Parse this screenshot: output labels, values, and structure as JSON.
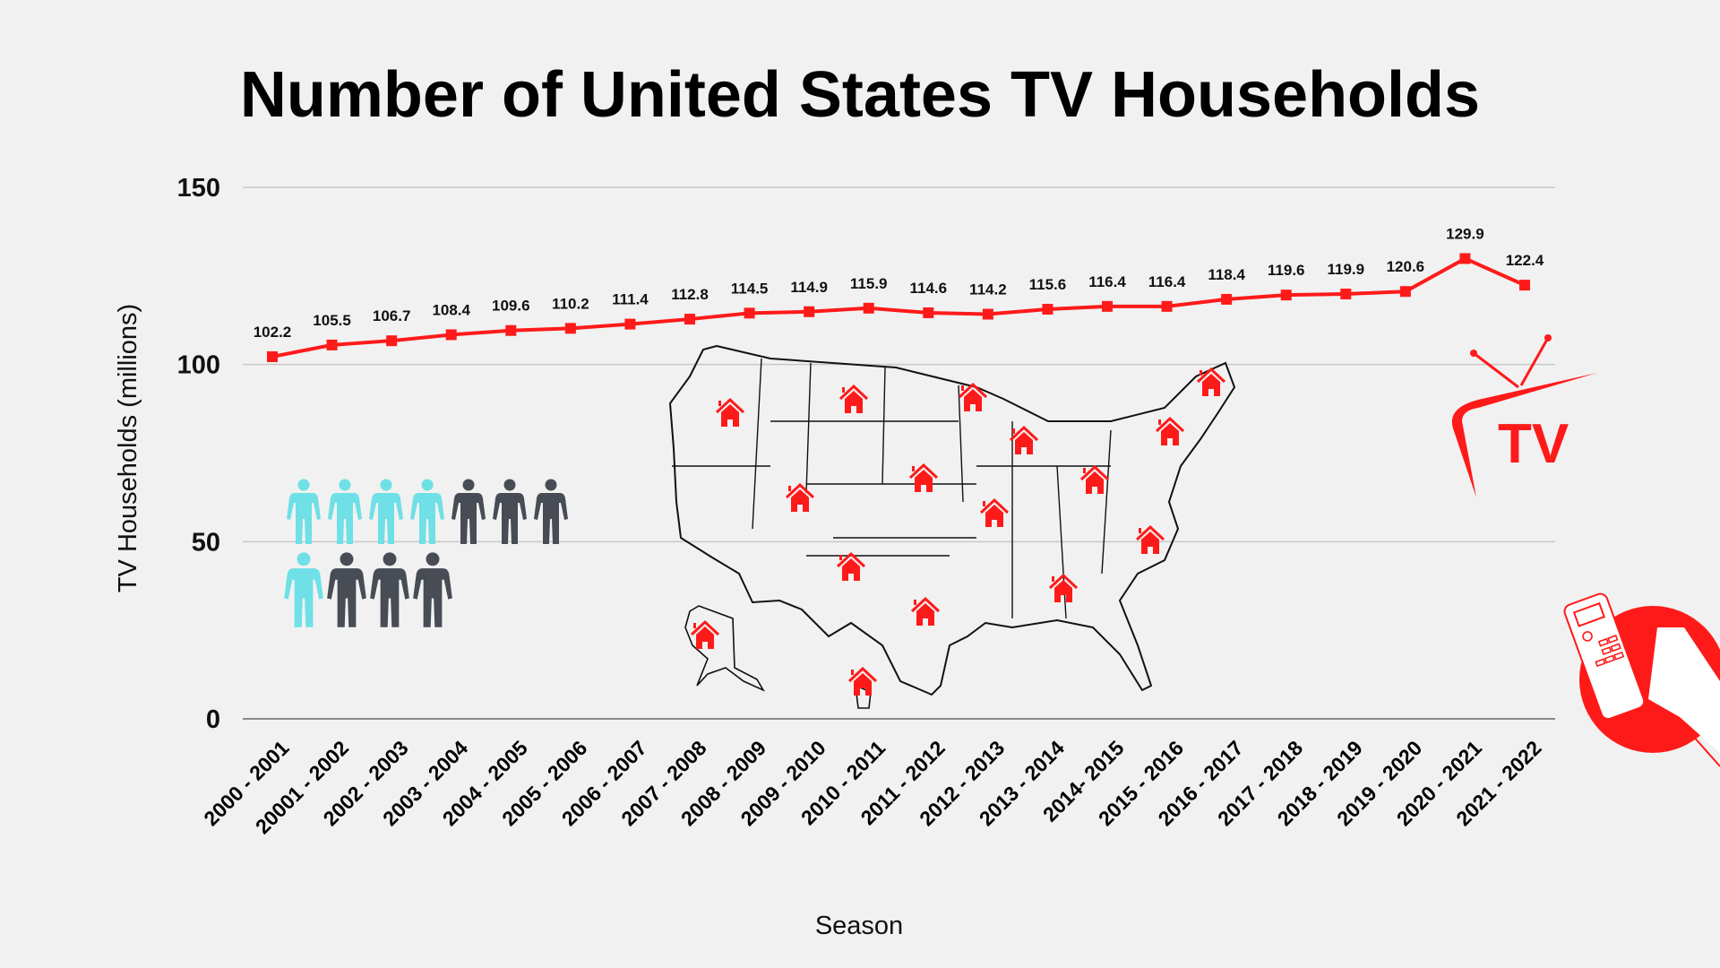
{
  "chart_data": {
    "type": "line",
    "title": "Number of United States TV Households",
    "xlabel": "Season",
    "ylabel": "TV Households (millions)",
    "ylim": [
      0,
      150
    ],
    "yticks": [
      0,
      50,
      100,
      150
    ],
    "grid": true,
    "categories": [
      "2000 - 2001",
      "20001 - 2002",
      "2002 - 2003",
      "2003 - 2004",
      "2004 - 2005",
      "2005 - 2006",
      "2006 - 2007",
      "2007 - 2008",
      "2008 - 2009",
      "2009 - 2010",
      "2010 - 2011",
      "2011 - 2012",
      "2012 - 2013",
      "2013 - 2014",
      "2014- 2015",
      "2015 - 2016",
      "2016 - 2017",
      "2017 - 2018",
      "2018 - 2019",
      "2019 - 2020",
      "2020 - 2021",
      "2021 - 2022"
    ],
    "values": [
      102.2,
      105.5,
      106.7,
      108.4,
      109.6,
      110.2,
      111.4,
      112.8,
      114.5,
      114.9,
      115.9,
      114.6,
      114.2,
      115.6,
      116.4,
      116.4,
      118.4,
      119.6,
      119.9,
      120.6,
      129.9,
      122.4
    ],
    "line_color": "#ff1a1a"
  },
  "decor": {
    "tv_logo_text": "TV",
    "accent": "#ff1a1a",
    "people_colors": [
      "#6ee0e6",
      "#474c55"
    ]
  }
}
